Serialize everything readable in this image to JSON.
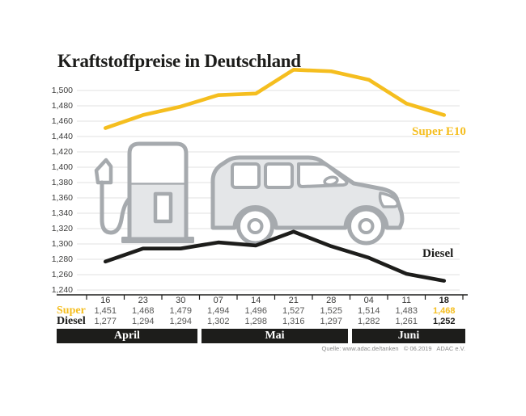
{
  "title": "Kraftstoffpreise in Deutschland",
  "source": "Quelle: www.adac.de/tanken   © 06.2019   ADAC e.V.",
  "colors": {
    "accent_yellow": "#F5BE1F",
    "line_black": "#1D1D1B",
    "grid": "#E8E8E8",
    "axis": "#1D1D1B",
    "table_value_text": "#575756",
    "table_date_text": "#3C3C3B",
    "illustration_stroke": "#A6AAAE",
    "illustration_fill": "#E4E6E8",
    "band_background": "#1D1D1B",
    "band_text": "#FFFFFF"
  },
  "icons": {
    "fuel_pump": "fuel-pump-icon",
    "car": "car-icon"
  },
  "chart_data": {
    "type": "line",
    "title": "Kraftstoffpreise in Deutschland",
    "x_categories": [
      "16",
      "23",
      "30",
      "07",
      "14",
      "21",
      "28",
      "04",
      "11",
      "18"
    ],
    "months": [
      {
        "label": "April",
        "span": 3
      },
      {
        "label": "Mai",
        "span": 4
      },
      {
        "label": "Juni",
        "span": 3
      }
    ],
    "y_tick_labels": [
      "1,500",
      "1,480",
      "1,460",
      "1,440",
      "1,420",
      "1,400",
      "1,380",
      "1,360",
      "1,340",
      "1,320",
      "1,300",
      "1,280",
      "1,260",
      "1,240"
    ],
    "ylim": [
      1240,
      1500
    ],
    "grid": true,
    "legend_position": "inline-right",
    "highlight_last_column": true,
    "series": [
      {
        "name": "Super E10",
        "table_label": "Super",
        "color": "#F5BE1F",
        "values": [
          1451,
          1468,
          1479,
          1494,
          1496,
          1527,
          1525,
          1514,
          1483,
          1468
        ]
      },
      {
        "name": "Diesel",
        "table_label": "Diesel",
        "color": "#1D1D1B",
        "values": [
          1277,
          1294,
          1294,
          1302,
          1298,
          1316,
          1297,
          1282,
          1261,
          1252
        ]
      }
    ]
  }
}
